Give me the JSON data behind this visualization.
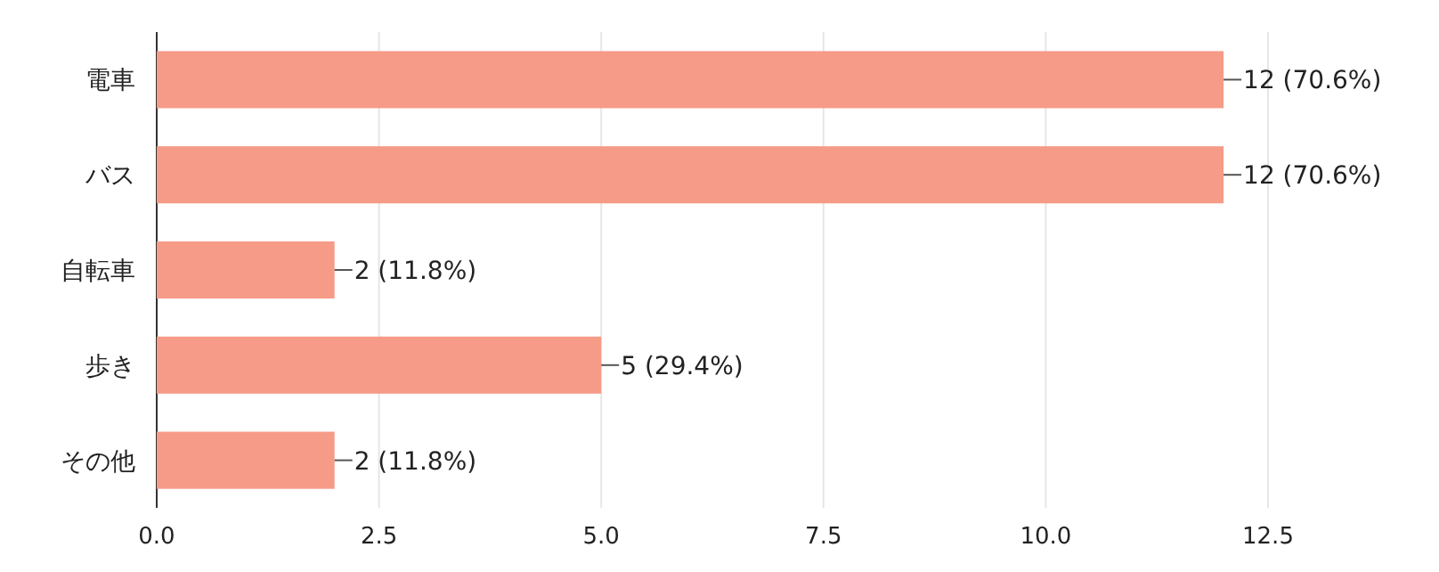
{
  "chart_data": {
    "type": "bar",
    "orientation": "horizontal",
    "categories": [
      "電車",
      "バス",
      "自転車",
      "歩き",
      "その他"
    ],
    "values": [
      12,
      12,
      2,
      5,
      2
    ],
    "value_labels": [
      "12 (70.6%)",
      "12 (70.6%)",
      "2 (11.8%)",
      "5 (29.4%)",
      "2 (11.8%)"
    ],
    "color": "#f59b87",
    "xlim": [
      0,
      12.5
    ],
    "xticks": [
      {
        "value": 0,
        "label": "0.0"
      },
      {
        "value": 2.5,
        "label": "2.5"
      },
      {
        "value": 5,
        "label": "5.0"
      },
      {
        "value": 7.5,
        "label": "7.5"
      },
      {
        "value": 10,
        "label": "10.0"
      },
      {
        "value": 12.5,
        "label": "12.5"
      }
    ],
    "grid": "x"
  }
}
